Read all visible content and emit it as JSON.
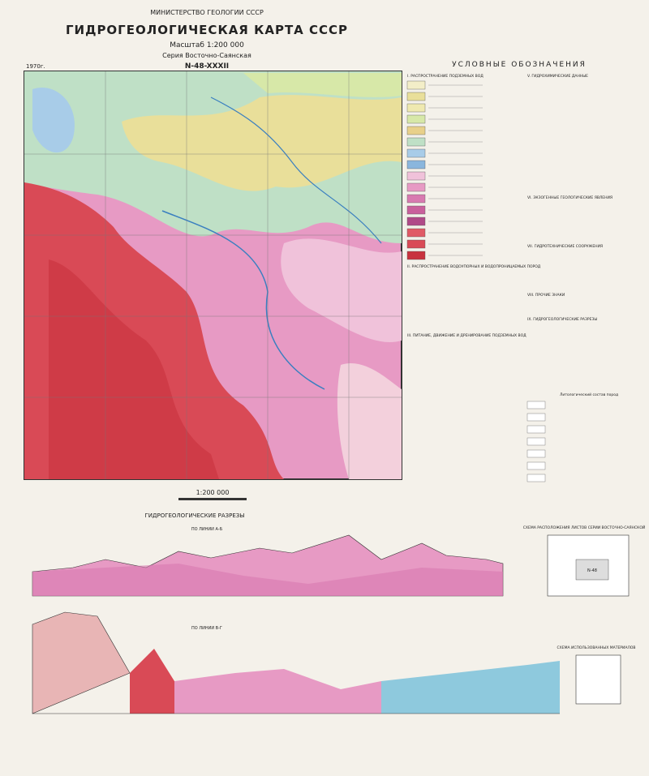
{
  "header": {
    "ministry": "МИНИСТЕРСТВО ГЕОЛОГИИ СССР",
    "title": "ГИДРОГЕОЛОГИЧЕСКАЯ КАРТА СССР",
    "scale": "Масштаб 1:200 000",
    "series": "Серия Восточно-Саянская",
    "sheet": "N-48-XXXII",
    "year": "1970г."
  },
  "legend": {
    "title": "УСЛОВНЫЕ ОБОЗНАЧЕНИЯ",
    "sections": [
      "I. РАСПРОСТРАНЕНИЕ ПОДЗЕМНЫХ ВОД",
      "II. РАСПРОСТРАНЕНИЕ ВОДОУПОРНЫХ И ВОДОПРОНИЦАЕМЫХ ПОРОД",
      "III. ПИТАНИЕ, ДВИЖЕНИЕ И ДРЕНИРОВАНИЕ ПОДЗЕМНЫХ ВОД",
      "V. ГИДРОХИМИЧЕСКИЕ ДАННЫЕ",
      "VI. ЭКЗОГЕННЫЕ ГЕОЛОГИЧЕСКИЕ ЯВЛЕНИЯ",
      "VII. ГИДРОТЕХНИЧЕСКИЕ СООРУЖЕНИЯ",
      "VIII. ПРОЧИЕ ЗНАКИ",
      "IX. ГИДРОГЕОЛОГИЧЕСКИЕ РАЗРЕЗЫ"
    ],
    "lithology": "Литологический состав пород"
  },
  "map_scale": "1:200 000",
  "sections": {
    "title": "ГИДРОГЕОЛОГИЧЕСКИЕ РАЗРЕЗЫ",
    "line1": "ПО ЛИНИИ А-Б",
    "line2": "ПО ЛИНИИ В-Г"
  },
  "schemes": {
    "sheets": "СХЕМА РАСПОЛОЖЕНИЯ ЛИСТОВ СЕРИИ ВОСТОЧНО-САЯНСКОЙ",
    "materials": "СХЕМА ИСПОЛЬЗОВАННЫХ МАТЕРИАЛОВ",
    "sheet_label": "N-48"
  }
}
